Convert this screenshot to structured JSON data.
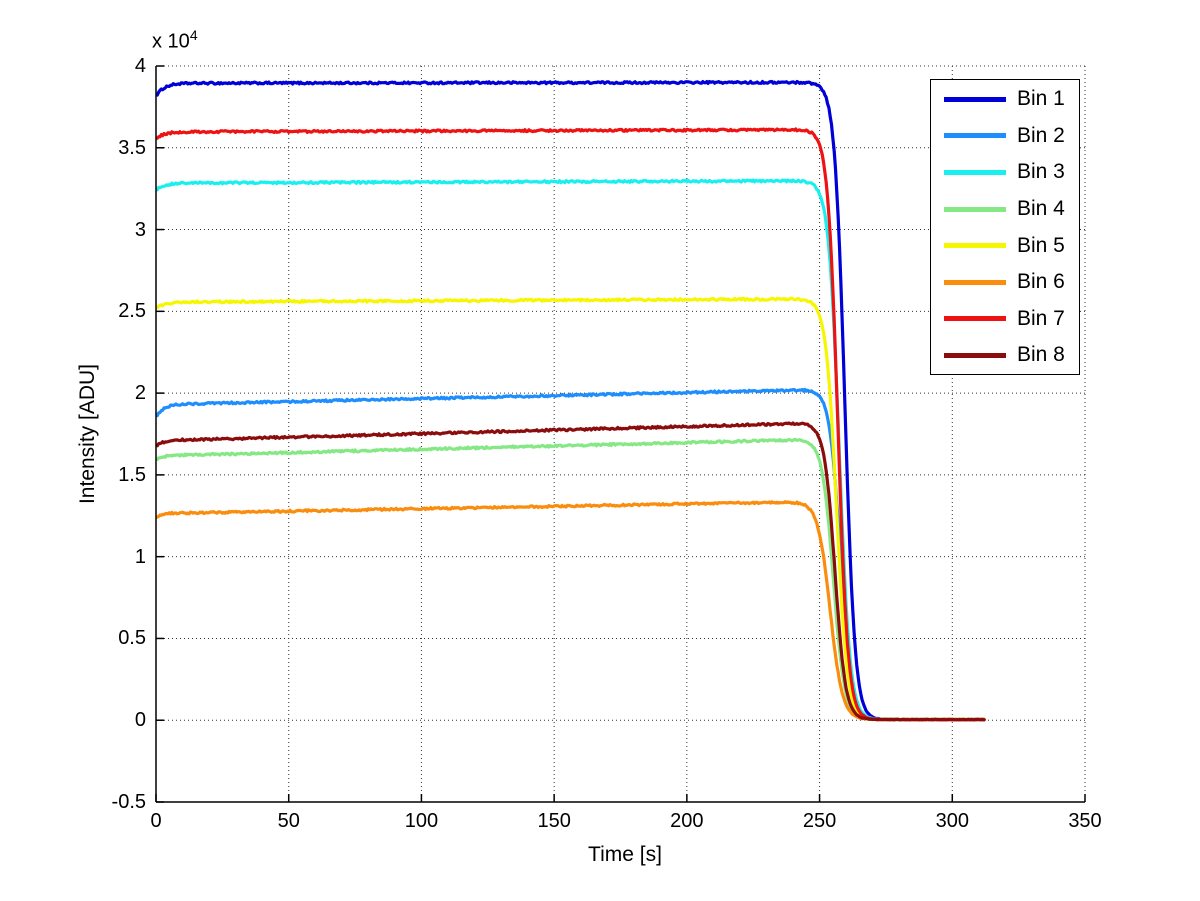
{
  "figure": {
    "x_label": "Time [s]",
    "y_label": "Intensity [ADU]",
    "y_exponent_prefix": "x 10",
    "y_exponent_power": "4",
    "background_color": "#ffffff",
    "axis_color": "#000000",
    "grid_style": "dotted-black"
  },
  "chart_data": {
    "type": "line",
    "title": "",
    "xlabel": "Time [s]",
    "ylabel": "Intensity [ADU]",
    "y_unit_note": "values displayed in units of 10^4 ADU",
    "xlim": [
      0,
      350
    ],
    "ylim_e4": [
      -0.5,
      4
    ],
    "x_ticks": [
      0,
      50,
      100,
      150,
      200,
      250,
      300,
      350
    ],
    "y_ticks_e4": [
      -0.5,
      0,
      0.5,
      1,
      1.5,
      2,
      2.5,
      3,
      3.5,
      4
    ],
    "grid": true,
    "legend_position": "upper-right",
    "x_start_s": 0.5,
    "x_end_s": 312,
    "description": "Eight intensity traces rise quickly from a starting value to a plateau, drift slowly upward, then drop sharply to zero near t=255-260 s and stay at zero until t=312 s.",
    "series": [
      {
        "name": "Bin 1",
        "color": "#0000D8",
        "start_value_e4": 3.815,
        "plateau_value_e4": 3.895,
        "pre_drop_value_e4": 3.9,
        "rise_tau_s": 3.0,
        "drop_center_s": 259.5,
        "drop_width_s": 1.9,
        "end_value_e4": 0.004
      },
      {
        "name": "Bin 2",
        "color": "#1E8EFF",
        "start_value_e4": 1.855,
        "plateau_value_e4": 1.935,
        "pre_drop_value_e4": 2.02,
        "rise_tau_s": 3.0,
        "drop_center_s": 257.8,
        "drop_width_s": 2.0,
        "end_value_e4": 0.004
      },
      {
        "name": "Bin 3",
        "color": "#1AEFEF",
        "start_value_e4": 3.24,
        "plateau_value_e4": 3.285,
        "pre_drop_value_e4": 3.298,
        "rise_tau_s": 3.0,
        "drop_center_s": 257.4,
        "drop_width_s": 2.0,
        "end_value_e4": 0.004
      },
      {
        "name": "Bin 4",
        "color": "#85E885",
        "start_value_e4": 1.59,
        "plateau_value_e4": 1.622,
        "pre_drop_value_e4": 1.715,
        "rise_tau_s": 3.0,
        "drop_center_s": 255.2,
        "drop_width_s": 2.1,
        "end_value_e4": 0.004
      },
      {
        "name": "Bin 5",
        "color": "#F6F600",
        "start_value_e4": 2.515,
        "plateau_value_e4": 2.558,
        "pre_drop_value_e4": 2.575,
        "rise_tau_s": 3.0,
        "drop_center_s": 256.4,
        "drop_width_s": 2.0,
        "end_value_e4": 0.004
      },
      {
        "name": "Bin 6",
        "color": "#FB8D0E",
        "start_value_e4": 1.243,
        "plateau_value_e4": 1.268,
        "pre_drop_value_e4": 1.335,
        "rise_tau_s": 3.0,
        "drop_center_s": 254.0,
        "drop_width_s": 2.3,
        "end_value_e4": 0.004
      },
      {
        "name": "Bin 7",
        "color": "#EE1212",
        "start_value_e4": 3.555,
        "plateau_value_e4": 3.598,
        "pre_drop_value_e4": 3.61,
        "rise_tau_s": 3.0,
        "drop_center_s": 256.9,
        "drop_width_s": 1.9,
        "end_value_e4": 0.004
      },
      {
        "name": "Bin 8",
        "color": "#8B0C0C",
        "start_value_e4": 1.675,
        "plateau_value_e4": 1.715,
        "pre_drop_value_e4": 1.815,
        "rise_tau_s": 3.0,
        "drop_center_s": 255.8,
        "drop_width_s": 2.0,
        "end_value_e4": 0.004
      }
    ]
  },
  "legend": {
    "items": [
      "Bin 1",
      "Bin 2",
      "Bin 3",
      "Bin 4",
      "Bin 5",
      "Bin 6",
      "Bin 7",
      "Bin 8"
    ]
  }
}
